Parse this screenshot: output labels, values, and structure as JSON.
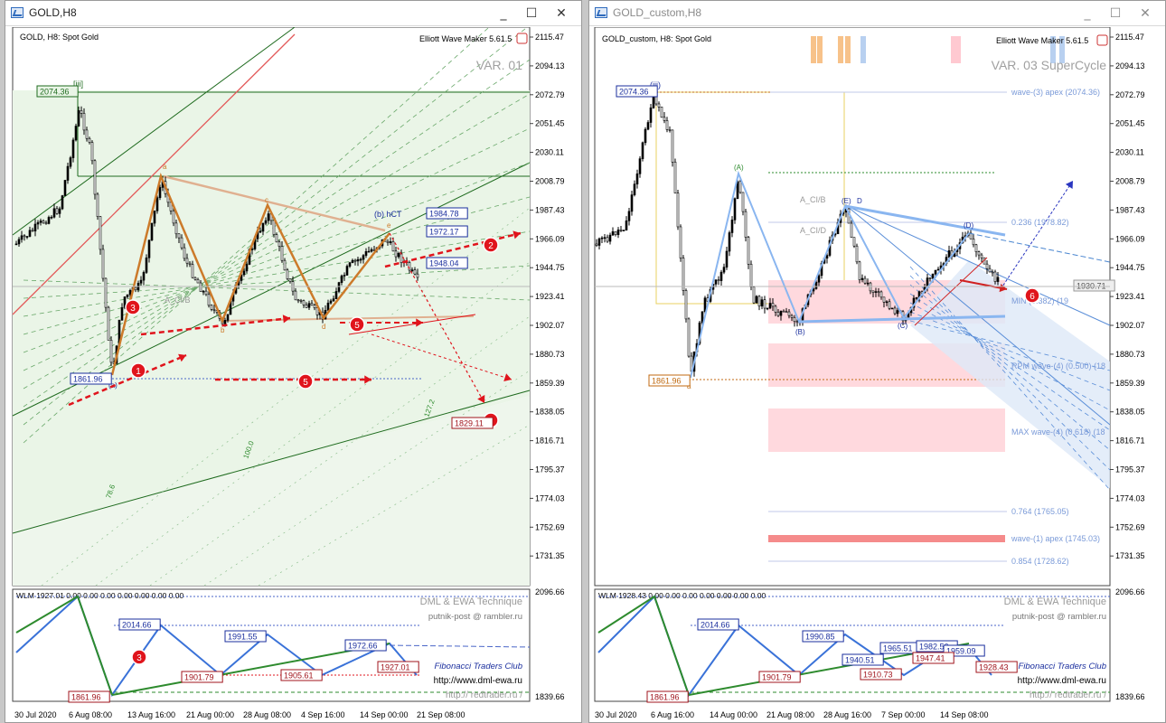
{
  "colors": {
    "bg": "#ffffff",
    "panel_border": "#444444",
    "candle": "#000000",
    "green_channel": "#1f6b1f",
    "green_fill": "#eaf5e7",
    "orange_wave": "#cc7a2a",
    "red_arrow": "#e0141c",
    "blue_label": "#1b2f9e",
    "red_label": "#a0141c",
    "pink_zone": "#ffd9de",
    "blue_wave": "#3a72d8",
    "ind_green": "#2e8b2e",
    "ind_blue": "#3a72d8"
  },
  "left": {
    "window_title": "GOLD,H8",
    "symbol_label": "GOLD, H8:  Spot Gold",
    "ewm_label": "Elliott Wave Maker 5.61.5",
    "var_label": "VAR. 01",
    "price_axis": [
      "2115.47",
      "2094.13",
      "2072.79",
      "2051.45",
      "2030.11",
      "2008.79",
      "1987.43",
      "1966.09",
      "1944.75",
      "1923.41",
      "1902.07",
      "1880.73",
      "1859.39",
      "1838.05",
      "1816.71",
      "1795.37",
      "1774.03",
      "1752.69",
      "1731.35"
    ],
    "price_boxes": [
      {
        "text": "2074.36",
        "kind": "green"
      },
      {
        "text": "1861.96",
        "kind": "blue"
      },
      {
        "text": "1984.78",
        "kind": "blue"
      },
      {
        "text": "1972.17",
        "kind": "blue"
      },
      {
        "text": "1948.04",
        "kind": "blue"
      },
      {
        "text": "1829.11",
        "kind": "red"
      }
    ],
    "wave_labels": [
      "[iii]",
      "(a)",
      "a",
      "b",
      "c",
      "d",
      "e",
      "A_CI/B",
      "(b) hCT"
    ],
    "fib_labels": [
      "127.2",
      "100.0",
      "78.6"
    ],
    "markers": [
      "1",
      "2",
      "3",
      "4",
      "5",
      "5"
    ],
    "time_axis": [
      "30 Jul 2020",
      "6 Aug 08:00",
      "13 Aug 16:00",
      "21 Aug 00:00",
      "28 Aug 08:00",
      "4 Sep 16:00",
      "14 Sep 00:00",
      "21 Sep 08:00"
    ],
    "indicator": {
      "header": "WLM 1927.01 0.00 0.00 0.00 0.00 0.00 0.00 0.00",
      "axis": [
        "2096.66",
        "1839.66"
      ],
      "boxes": [
        {
          "text": "2014.66",
          "kind": "blue"
        },
        {
          "text": "1991.55",
          "kind": "blue"
        },
        {
          "text": "1972.66",
          "kind": "blue"
        },
        {
          "text": "1861.96",
          "kind": "red"
        },
        {
          "text": "1901.79",
          "kind": "red"
        },
        {
          "text": "1905.61",
          "kind": "red"
        },
        {
          "text": "1927.01",
          "kind": "red"
        }
      ],
      "marker": "3",
      "credits": [
        "DML & EWA Technique",
        "putnik-post @ rambler.ru",
        "Fibonacci   Traders   Club",
        "http://www.dml-ewa.ru",
        "http:// redtrader.ru /"
      ]
    }
  },
  "right": {
    "window_title": "GOLD_custom,H8",
    "symbol_label": "GOLD_custom, H8:  Spot Gold",
    "ewm_label": "Elliott Wave Maker 5.61.5",
    "var_label": "VAR. 03 SuperCycle",
    "price_axis": [
      "2115.47",
      "2094.13",
      "2072.79",
      "2051.45",
      "2030.11",
      "2008.79",
      "1987.43",
      "1966.09",
      "1944.75",
      "1923.41",
      "1902.07",
      "1880.73",
      "1859.39",
      "1838.05",
      "1816.71",
      "1795.37",
      "1774.03",
      "1752.69",
      "1731.35"
    ],
    "price_boxes": [
      {
        "text": "2074.36",
        "kind": "blue"
      },
      {
        "text": "1861.96",
        "kind": "orange"
      },
      {
        "text": "1930.71",
        "kind": "gray"
      }
    ],
    "wave_labels": [
      "(iii)",
      "a",
      "(A)",
      "(B)",
      "(C)",
      "(D)",
      "(E)",
      "A_CI/B",
      "A_CI/D",
      "D"
    ],
    "level_labels": [
      "wave-(3) apex (2074.36)",
      "0.236 (1978.82)",
      "MIN (0.382) (19",
      "RPM wave-(4) (0.500) (18",
      "MAX wave-(4) (0.618) (18",
      "0.764 (1765.05)",
      "wave-(1) apex (1745.03)",
      "0.854 (1728.62)"
    ],
    "marker": "6",
    "time_axis": [
      "30 Jul 2020",
      "6 Aug 16:00",
      "14 Aug 00:00",
      "21 Aug 08:00",
      "28 Aug 16:00",
      "7 Sep 00:00",
      "14 Sep 08:00"
    ],
    "indicator": {
      "header": "WLM 1928.43 0.00 0.00 0.00 0.00 0.00 0.00 0.00",
      "axis": [
        "2096.66",
        "1839.66"
      ],
      "boxes": [
        {
          "text": "2014.66",
          "kind": "blue"
        },
        {
          "text": "1990.85",
          "kind": "blue"
        },
        {
          "text": "1940.51",
          "kind": "blue"
        },
        {
          "text": "1965.51",
          "kind": "blue"
        },
        {
          "text": "1982.56",
          "kind": "blue"
        },
        {
          "text": "1959.09",
          "kind": "blue"
        },
        {
          "text": "1861.96",
          "kind": "red"
        },
        {
          "text": "1901.79",
          "kind": "red"
        },
        {
          "text": "1910.73",
          "kind": "red"
        },
        {
          "text": "1947.41",
          "kind": "red"
        },
        {
          "text": "1928.43",
          "kind": "red"
        }
      ],
      "credits": [
        "DML & EWA Technique",
        "putnik-post @ rambler.ru",
        "Fibonacci   Traders   Club",
        "http://www.dml-ewa.ru",
        "http:// redtrader.ru /"
      ]
    }
  },
  "window_buttons": {
    "minimize": "_",
    "maximize": "☐",
    "close": "✕"
  }
}
